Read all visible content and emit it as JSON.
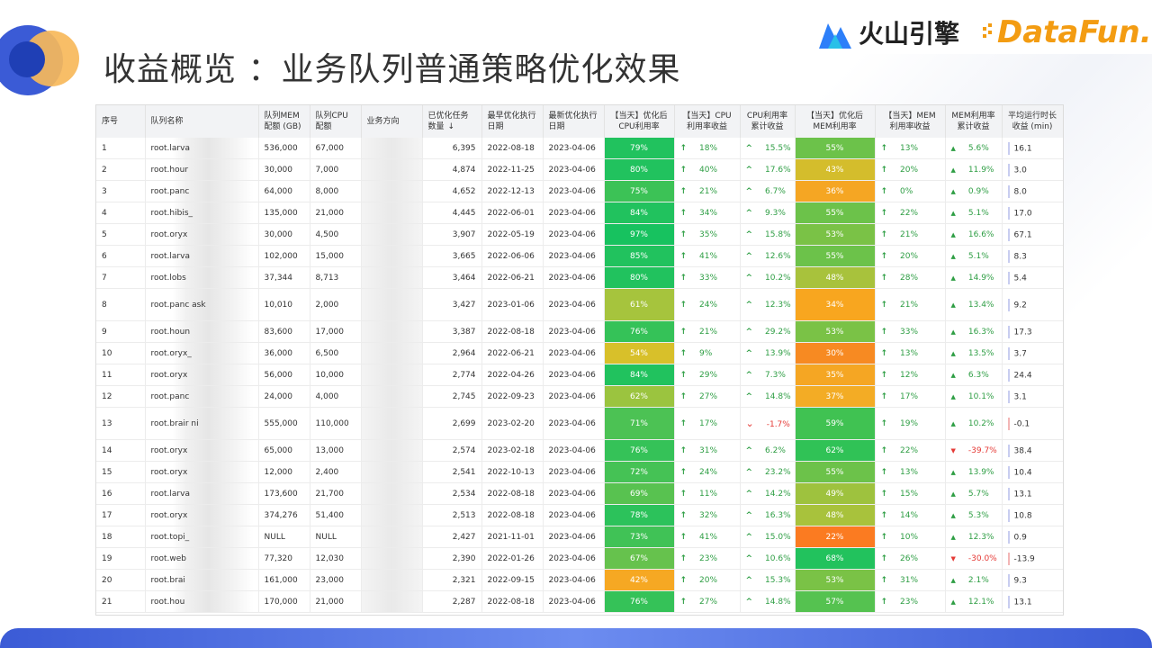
{
  "title": "收益概览 ：业务队列普通策略优化效果",
  "brand": {
    "volc": "火山引擎",
    "datafun": "DataFun."
  },
  "table": {
    "headers": [
      "序号",
      "队列名称",
      "队列MEM配额 (GB)",
      "队列CPU配额",
      "业务方向",
      "已优化任务数量",
      "最早优化执行日期",
      "最新优化执行日期",
      "【当天】优化后CPU利用率",
      "【当天】CPU利用率收益",
      "CPU利用率累计收益",
      "【当天】优化后MEM利用率",
      "【当天】MEM利用率收益",
      "MEM利用率累计收益",
      "平均运行时长收益 (min)"
    ],
    "rows": [
      {
        "id": "1",
        "name": "root.larva",
        "mem": "536,000",
        "cpu": "67,000",
        "tasks": "6,395",
        "earliest": "2022-08-18",
        "latest": "2023-04-06",
        "cpu_util": "79%",
        "cpu_gain": "18%",
        "cpu_cum": "15.5%",
        "mem_util": "55%",
        "mem_gain": "13%",
        "mem_cum": "5.6%",
        "runtime": "16.1",
        "cpu_color": "#21c25e",
        "mem_color": "#6cc24a"
      },
      {
        "id": "2",
        "name": "root.hour",
        "mem": "30,000",
        "cpu": "7,000",
        "tasks": "4,874",
        "earliest": "2022-11-25",
        "latest": "2023-04-06",
        "cpu_util": "80%",
        "cpu_gain": "40%",
        "cpu_cum": "17.6%",
        "mem_util": "43%",
        "mem_gain": "20%",
        "mem_cum": "11.9%",
        "runtime": "3.0",
        "cpu_color": "#21c25e",
        "mem_color": "#d4bd2c"
      },
      {
        "id": "3",
        "name": "root.panc",
        "mem": "64,000",
        "cpu": "8,000",
        "tasks": "4,652",
        "earliest": "2022-12-13",
        "latest": "2023-04-06",
        "cpu_util": "75%",
        "cpu_gain": "21%",
        "cpu_cum": "6.7%",
        "mem_util": "36%",
        "mem_gain": "0%",
        "mem_cum": "0.9%",
        "runtime": "8.0",
        "cpu_color": "#3cc256",
        "mem_color": "#f5a623"
      },
      {
        "id": "4",
        "name": "root.hibis_",
        "mem": "135,000",
        "cpu": "21,000",
        "tasks": "4,445",
        "earliest": "2022-06-01",
        "latest": "2023-04-06",
        "cpu_util": "84%",
        "cpu_gain": "34%",
        "cpu_cum": "9.3%",
        "mem_util": "55%",
        "mem_gain": "22%",
        "mem_cum": "5.1%",
        "runtime": "17.0",
        "cpu_color": "#21c25e",
        "mem_color": "#6cc24a"
      },
      {
        "id": "5",
        "name": "root.oryx",
        "mem": "30,000",
        "cpu": "4,500",
        "tasks": "3,907",
        "earliest": "2022-05-19",
        "latest": "2023-04-06",
        "cpu_util": "97%",
        "cpu_gain": "35%",
        "cpu_cum": "15.8%",
        "mem_util": "53%",
        "mem_gain": "21%",
        "mem_cum": "16.6%",
        "runtime": "67.1",
        "cpu_color": "#17c25f",
        "mem_color": "#7ac246"
      },
      {
        "id": "6",
        "name": "root.larva",
        "mem": "102,000",
        "cpu": "15,000",
        "tasks": "3,665",
        "earliest": "2022-06-06",
        "latest": "2023-04-06",
        "cpu_util": "85%",
        "cpu_gain": "41%",
        "cpu_cum": "12.6%",
        "mem_util": "55%",
        "mem_gain": "20%",
        "mem_cum": "5.1%",
        "runtime": "8.3",
        "cpu_color": "#21c25e",
        "mem_color": "#6cc24a"
      },
      {
        "id": "7",
        "name": "root.lobs",
        "mem": "37,344",
        "cpu": "8,713",
        "tasks": "3,464",
        "earliest": "2022-06-21",
        "latest": "2023-04-06",
        "cpu_util": "80%",
        "cpu_gain": "33%",
        "cpu_cum": "10.2%",
        "mem_util": "48%",
        "mem_gain": "28%",
        "mem_cum": "14.9%",
        "runtime": "5.4",
        "cpu_color": "#21c25e",
        "mem_color": "#a8c23c"
      },
      {
        "id": "8",
        "name": "root.panc ask",
        "mem": "10,010",
        "cpu": "2,000",
        "tasks": "3,427",
        "earliest": "2023-01-06",
        "latest": "2023-04-06",
        "cpu_util": "61%",
        "cpu_gain": "24%",
        "cpu_cum": "12.3%",
        "mem_util": "34%",
        "mem_gain": "21%",
        "mem_cum": "13.4%",
        "runtime": "9.2",
        "cpu_color": "#a6c43d",
        "mem_color": "#f8a61f",
        "tall": true
      },
      {
        "id": "9",
        "name": "root.houn",
        "mem": "83,600",
        "cpu": "17,000",
        "tasks": "3,387",
        "earliest": "2022-08-18",
        "latest": "2023-04-06",
        "cpu_util": "76%",
        "cpu_gain": "21%",
        "cpu_cum": "29.2%",
        "mem_util": "53%",
        "mem_gain": "33%",
        "mem_cum": "16.3%",
        "runtime": "17.3",
        "cpu_color": "#35c258",
        "mem_color": "#7ac246"
      },
      {
        "id": "10",
        "name": "root.oryx_",
        "mem": "36,000",
        "cpu": "6,500",
        "tasks": "2,964",
        "earliest": "2022-06-21",
        "latest": "2023-04-06",
        "cpu_util": "54%",
        "cpu_gain": "9%",
        "cpu_cum": "13.9%",
        "mem_util": "30%",
        "mem_gain": "13%",
        "mem_cum": "13.5%",
        "runtime": "3.7",
        "cpu_color": "#d8c02a",
        "mem_color": "#f78a22"
      },
      {
        "id": "11",
        "name": "root.oryx",
        "mem": "56,000",
        "cpu": "10,000",
        "tasks": "2,774",
        "earliest": "2022-04-26",
        "latest": "2023-04-06",
        "cpu_util": "84%",
        "cpu_gain": "29%",
        "cpu_cum": "7.3%",
        "mem_util": "35%",
        "mem_gain": "12%",
        "mem_cum": "6.3%",
        "runtime": "24.4",
        "cpu_color": "#21c25e",
        "mem_color": "#f5a623"
      },
      {
        "id": "12",
        "name": "root.panc",
        "mem": "24,000",
        "cpu": "4,000",
        "tasks": "2,745",
        "earliest": "2022-09-23",
        "latest": "2023-04-06",
        "cpu_util": "62%",
        "cpu_gain": "27%",
        "cpu_cum": "14.8%",
        "mem_util": "37%",
        "mem_gain": "17%",
        "mem_cum": "10.1%",
        "runtime": "3.1",
        "cpu_color": "#9bc43f",
        "mem_color": "#f3ac25"
      },
      {
        "id": "13",
        "name": "root.brair ni",
        "mem": "555,000",
        "cpu": "110,000",
        "tasks": "2,699",
        "earliest": "2023-02-20",
        "latest": "2023-04-06",
        "cpu_util": "71%",
        "cpu_gain": "17%",
        "cpu_cum": "-1.7%",
        "mem_util": "59%",
        "mem_gain": "19%",
        "mem_cum": "10.2%",
        "runtime": "-0.1",
        "cpu_color": "#4cc254",
        "mem_color": "#40c252",
        "tall": true,
        "cpu_cum_neg": true,
        "runtime_neg": true
      },
      {
        "id": "14",
        "name": "root.oryx",
        "mem": "65,000",
        "cpu": "13,000",
        "tasks": "2,574",
        "earliest": "2023-02-18",
        "latest": "2023-04-06",
        "cpu_util": "76%",
        "cpu_gain": "31%",
        "cpu_cum": "6.2%",
        "mem_util": "62%",
        "mem_gain": "22%",
        "mem_cum": "-39.7%",
        "runtime": "38.4",
        "cpu_color": "#35c258",
        "mem_color": "#30c256",
        "mem_cum_neg": true
      },
      {
        "id": "15",
        "name": "root.oryx",
        "mem": "12,000",
        "cpu": "2,400",
        "tasks": "2,541",
        "earliest": "2022-10-13",
        "latest": "2023-04-06",
        "cpu_util": "72%",
        "cpu_gain": "24%",
        "cpu_cum": "23.2%",
        "mem_util": "55%",
        "mem_gain": "13%",
        "mem_cum": "13.9%",
        "runtime": "10.4",
        "cpu_color": "#45c255",
        "mem_color": "#6cc24a"
      },
      {
        "id": "16",
        "name": "root.larva",
        "mem": "173,600",
        "cpu": "21,700",
        "tasks": "2,534",
        "earliest": "2022-08-18",
        "latest": "2023-04-06",
        "cpu_util": "69%",
        "cpu_gain": "11%",
        "cpu_cum": "14.2%",
        "mem_util": "49%",
        "mem_gain": "15%",
        "mem_cum": "5.7%",
        "runtime": "13.1",
        "cpu_color": "#58c250",
        "mem_color": "#9ec23e"
      },
      {
        "id": "17",
        "name": "root.oryx",
        "mem": "374,276",
        "cpu": "51,400",
        "tasks": "2,513",
        "earliest": "2022-08-18",
        "latest": "2023-04-06",
        "cpu_util": "78%",
        "cpu_gain": "32%",
        "cpu_cum": "16.3%",
        "mem_util": "48%",
        "mem_gain": "14%",
        "mem_cum": "5.3%",
        "runtime": "10.8",
        "cpu_color": "#2cc25b",
        "mem_color": "#a8c23c"
      },
      {
        "id": "18",
        "name": "root.topi_",
        "mem": "NULL",
        "cpu": "NULL",
        "tasks": "2,427",
        "earliest": "2021-11-01",
        "latest": "2023-04-06",
        "cpu_util": "73%",
        "cpu_gain": "41%",
        "cpu_cum": "15.0%",
        "mem_util": "22%",
        "mem_gain": "10%",
        "mem_cum": "12.3%",
        "runtime": "0.9",
        "cpu_color": "#40c256",
        "mem_color": "#fb7b21"
      },
      {
        "id": "19",
        "name": "root.web",
        "mem": "77,320",
        "cpu": "12,030",
        "tasks": "2,390",
        "earliest": "2022-01-26",
        "latest": "2023-04-06",
        "cpu_util": "67%",
        "cpu_gain": "23%",
        "cpu_cum": "10.6%",
        "mem_util": "68%",
        "mem_gain": "26%",
        "mem_cum": "-30.0%",
        "runtime": "-13.9",
        "cpu_color": "#66c24d",
        "mem_color": "#22c25d",
        "mem_cum_neg": true,
        "runtime_neg": true
      },
      {
        "id": "20",
        "name": "root.brai",
        "mem": "161,000",
        "cpu": "23,000",
        "tasks": "2,321",
        "earliest": "2022-09-15",
        "latest": "2023-04-06",
        "cpu_util": "42%",
        "cpu_gain": "20%",
        "cpu_cum": "15.3%",
        "mem_util": "53%",
        "mem_gain": "31%",
        "mem_cum": "2.1%",
        "runtime": "9.3",
        "cpu_color": "#f6a823",
        "mem_color": "#7ac246"
      },
      {
        "id": "21",
        "name": "root.hou",
        "mem": "170,000",
        "cpu": "21,000",
        "tasks": "2,287",
        "earliest": "2022-08-18",
        "latest": "2023-04-06",
        "cpu_util": "76%",
        "cpu_gain": "27%",
        "cpu_cum": "14.8%",
        "mem_util": "57%",
        "mem_gain": "23%",
        "mem_cum": "12.1%",
        "runtime": "13.1",
        "cpu_color": "#35c258",
        "mem_color": "#55c250"
      }
    ]
  }
}
